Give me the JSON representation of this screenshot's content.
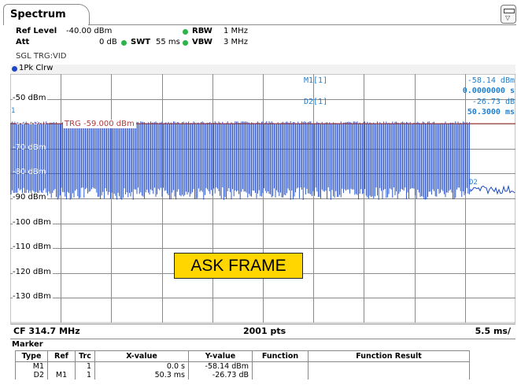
{
  "tab": {
    "label": "Spectrum"
  },
  "settings": {
    "ref_level_label": "Ref Level",
    "ref_level_value": "-40.00 dBm",
    "att_label": "Att",
    "att_value": "0 dB",
    "swt_label": "SWT",
    "swt_value": "55 ms",
    "rbw_label": "RBW",
    "rbw_value": "1 MHz",
    "vbw_label": "VBW",
    "vbw_value": "3 MHz",
    "trigger": "SGL TRG:VID",
    "indicator_color": "#2db34a"
  },
  "trace": {
    "label": "1Pk Clrw",
    "color": "#1947c8"
  },
  "plot": {
    "y_labels": [
      "-50 dBm",
      "-60 dBm",
      "-70 dBm",
      "-80 dBm",
      "-90 dBm",
      "-100 dBm",
      "-110 dBm",
      "-120 dBm",
      "-130 dBm"
    ],
    "trigger_label": "TRG -59.000 dBm",
    "trigger_color": "#b03a3a",
    "marker1_flag": "1",
    "marker2_flag": "D2",
    "overlay_label": "ASK FRAME",
    "overlay_color": "#ffd600"
  },
  "marker_readout": {
    "m1_label": "M1[1]",
    "m1_level": "-58.14 dBm",
    "m1_time": "0.0000000 s",
    "d2_label": "D2[1]",
    "d2_level": "-26.73 dB",
    "d2_time": "50.3000 ms",
    "color": "#1e7fd0"
  },
  "footer": {
    "cf": "CF 314.7 MHz",
    "pts": "2001 pts",
    "span": "5.5 ms/"
  },
  "marker_table": {
    "title": "Marker",
    "headers": [
      "Type",
      "Ref",
      "Trc",
      "X-value",
      "Y-value",
      "Function",
      "Function Result"
    ],
    "rows": [
      [
        "M1",
        "",
        "1",
        "0.0 s",
        "-58.14 dBm",
        "",
        ""
      ],
      [
        "D2",
        "M1",
        "1",
        "50.3 ms",
        "-26.73 dB",
        "",
        ""
      ]
    ]
  }
}
